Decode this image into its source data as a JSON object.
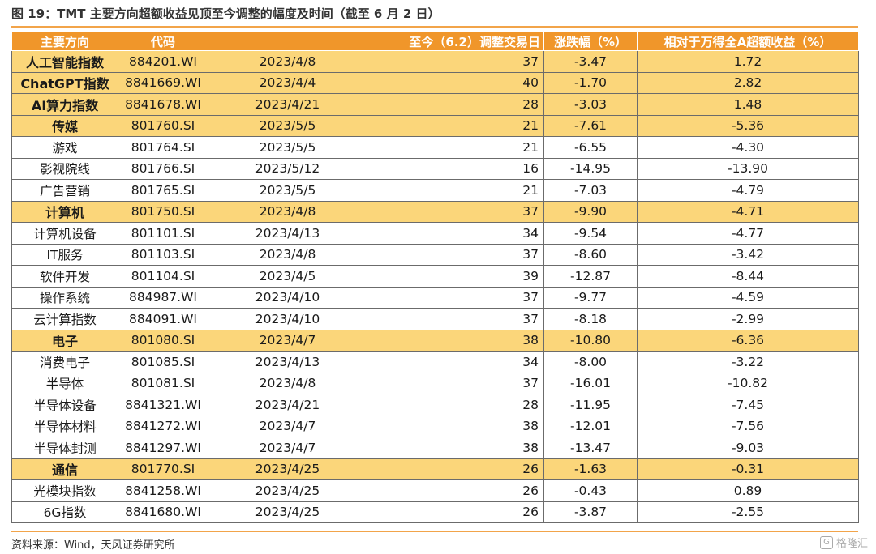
{
  "title": "图 19：TMT 主要方向超额收益见顶至今调整的幅度及时间（截至 6 月 2 日）",
  "table": {
    "headers": [
      "主要方向",
      "代码",
      "",
      "至今（6.2）调整交易日",
      "涨跌幅（%）",
      "相对于万得全A超额收益（%）"
    ],
    "rows": [
      {
        "name": "人工智能指数",
        "code": "884201.WI",
        "date": "2023/4/8",
        "days": "37",
        "chg": "-3.47",
        "excess": "1.72",
        "highlight": true
      },
      {
        "name": "ChatGPT指数",
        "code": "8841669.WI",
        "date": "2023/4/4",
        "days": "40",
        "chg": "-1.70",
        "excess": "2.82",
        "highlight": true
      },
      {
        "name": "AI算力指数",
        "code": "8841678.WI",
        "date": "2023/4/21",
        "days": "28",
        "chg": "-3.03",
        "excess": "1.48",
        "highlight": true
      },
      {
        "name": "传媒",
        "code": "801760.SI",
        "date": "2023/5/5",
        "days": "21",
        "chg": "-7.61",
        "excess": "-5.36",
        "highlight": true
      },
      {
        "name": "游戏",
        "code": "801764.SI",
        "date": "2023/5/5",
        "days": "21",
        "chg": "-6.55",
        "excess": "-4.30",
        "highlight": false
      },
      {
        "name": "影视院线",
        "code": "801766.SI",
        "date": "2023/5/12",
        "days": "16",
        "chg": "-14.95",
        "excess": "-13.90",
        "highlight": false
      },
      {
        "name": "广告营销",
        "code": "801765.SI",
        "date": "2023/5/5",
        "days": "21",
        "chg": "-7.03",
        "excess": "-4.79",
        "highlight": false
      },
      {
        "name": "计算机",
        "code": "801750.SI",
        "date": "2023/4/8",
        "days": "37",
        "chg": "-9.90",
        "excess": "-4.71",
        "highlight": true
      },
      {
        "name": "计算机设备",
        "code": "801101.SI",
        "date": "2023/4/13",
        "days": "34",
        "chg": "-9.54",
        "excess": "-4.77",
        "highlight": false
      },
      {
        "name": "IT服务",
        "code": "801103.SI",
        "date": "2023/4/8",
        "days": "37",
        "chg": "-8.60",
        "excess": "-3.42",
        "highlight": false
      },
      {
        "name": "软件开发",
        "code": "801104.SI",
        "date": "2023/4/5",
        "days": "39",
        "chg": "-12.87",
        "excess": "-8.44",
        "highlight": false
      },
      {
        "name": "操作系统",
        "code": "884987.WI",
        "date": "2023/4/10",
        "days": "37",
        "chg": "-9.77",
        "excess": "-4.59",
        "highlight": false
      },
      {
        "name": "云计算指数",
        "code": "884091.WI",
        "date": "2023/4/10",
        "days": "37",
        "chg": "-8.18",
        "excess": "-2.99",
        "highlight": false
      },
      {
        "name": "电子",
        "code": "801080.SI",
        "date": "2023/4/7",
        "days": "38",
        "chg": "-10.80",
        "excess": "-6.36",
        "highlight": true
      },
      {
        "name": "消费电子",
        "code": "801085.SI",
        "date": "2023/4/13",
        "days": "34",
        "chg": "-8.00",
        "excess": "-3.22",
        "highlight": false
      },
      {
        "name": "半导体",
        "code": "801081.SI",
        "date": "2023/4/8",
        "days": "37",
        "chg": "-16.01",
        "excess": "-10.82",
        "highlight": false
      },
      {
        "name": "半导体设备",
        "code": "8841321.WI",
        "date": "2023/4/21",
        "days": "28",
        "chg": "-11.95",
        "excess": "-7.45",
        "highlight": false
      },
      {
        "name": "半导体材料",
        "code": "8841272.WI",
        "date": "2023/4/7",
        "days": "38",
        "chg": "-12.01",
        "excess": "-7.56",
        "highlight": false
      },
      {
        "name": "半导体封测",
        "code": "8841297.WI",
        "date": "2023/4/7",
        "days": "38",
        "chg": "-13.47",
        "excess": "-9.03",
        "highlight": false
      },
      {
        "name": "通信",
        "code": "801770.SI",
        "date": "2023/4/25",
        "days": "26",
        "chg": "-1.63",
        "excess": "-0.31",
        "highlight": true
      },
      {
        "name": "光模块指数",
        "code": "8841258.WI",
        "date": "2023/4/25",
        "days": "26",
        "chg": "-0.43",
        "excess": "0.89",
        "highlight": false
      },
      {
        "name": "6G指数",
        "code": "8841680.WI",
        "date": "2023/4/25",
        "days": "26",
        "chg": "-3.87",
        "excess": "-2.55",
        "highlight": false
      }
    ]
  },
  "source": "资料来源：Wind，天风证券研究所",
  "watermark": {
    "icon": "G",
    "text": "格隆汇"
  },
  "colors": {
    "header_bg": "#f0962a",
    "highlight_bg": "#fbd67a",
    "rule": "#f2a44a"
  }
}
